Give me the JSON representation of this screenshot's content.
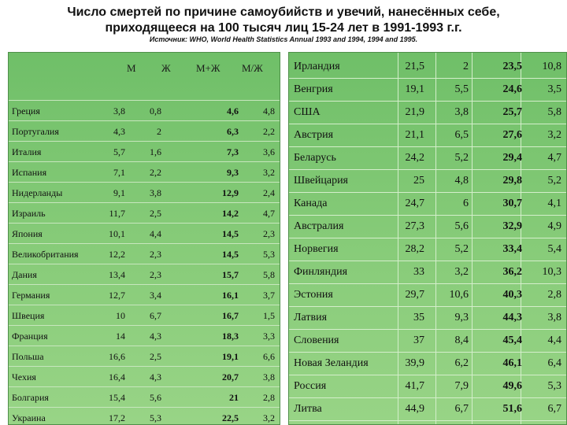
{
  "title_line1": "Число смертей по причине самоубийств и увечий, нанесённых себе,",
  "title_line2": "приходящееся на 100 тысяч лиц 15-24 лет в 1991-1993 г.г.",
  "source": "Источник: WHO, World Health Statistics Annual 1993 and 1994, 1994 and 1995.",
  "headers": {
    "m": "М",
    "f": "Ж",
    "mf": "М+Ж",
    "ratio": "М/Ж"
  },
  "left_rows": [
    {
      "name": "Греция",
      "m": "3,8",
      "f": "0,8",
      "mf": "4,6",
      "r": "4,8"
    },
    {
      "name": "Португалия",
      "m": "4,3",
      "f": "2",
      "mf": "6,3",
      "r": "2,2"
    },
    {
      "name": "Италия",
      "m": "5,7",
      "f": "1,6",
      "mf": "7,3",
      "r": "3,6"
    },
    {
      "name": "Испания",
      "m": "7,1",
      "f": "2,2",
      "mf": "9,3",
      "r": "3,2"
    },
    {
      "name": "Нидерланды",
      "m": "9,1",
      "f": "3,8",
      "mf": "12,9",
      "r": "2,4"
    },
    {
      "name": "Израиль",
      "m": "11,7",
      "f": "2,5",
      "mf": "14,2",
      "r": "4,7"
    },
    {
      "name": "Япония",
      "m": "10,1",
      "f": "4,4",
      "mf": "14,5",
      "r": "2,3"
    },
    {
      "name": "Великобритания",
      "m": "12,2",
      "f": "2,3",
      "mf": "14,5",
      "r": "5,3"
    },
    {
      "name": "Дания",
      "m": "13,4",
      "f": "2,3",
      "mf": "15,7",
      "r": "5,8"
    },
    {
      "name": "Германия",
      "m": "12,7",
      "f": "3,4",
      "mf": "16,1",
      "r": "3,7"
    },
    {
      "name": "Швеция",
      "m": "10",
      "f": "6,7",
      "mf": "16,7",
      "r": "1,5"
    },
    {
      "name": "Франция",
      "m": "14",
      "f": "4,3",
      "mf": "18,3",
      "r": "3,3"
    },
    {
      "name": "Польша",
      "m": "16,6",
      "f": "2,5",
      "mf": "19,1",
      "r": "6,6"
    },
    {
      "name": "Чехия",
      "m": "16,4",
      "f": "4,3",
      "mf": "20,7",
      "r": "3,8"
    },
    {
      "name": "Болгария",
      "m": "15,4",
      "f": "5,6",
      "mf": "21",
      "r": "2,8"
    },
    {
      "name": "Украина",
      "m": "17,2",
      "f": "5,3",
      "mf": "22,5",
      "r": "3,2"
    }
  ],
  "right_rows": [
    {
      "name": "Ирландия",
      "m": "21,5",
      "f": "2",
      "mf": "23,5",
      "r": "10,8"
    },
    {
      "name": "Венгрия",
      "m": "19,1",
      "f": "5,5",
      "mf": "24,6",
      "r": "3,5"
    },
    {
      "name": "США",
      "m": "21,9",
      "f": "3,8",
      "mf": "25,7",
      "r": "5,8"
    },
    {
      "name": "Австрия",
      "m": "21,1",
      "f": "6,5",
      "mf": "27,6",
      "r": "3,2"
    },
    {
      "name": "Беларусь",
      "m": "24,2",
      "f": "5,2",
      "mf": "29,4",
      "r": "4,7"
    },
    {
      "name": "Швейцария",
      "m": "25",
      "f": "4,8",
      "mf": "29,8",
      "r": "5,2"
    },
    {
      "name": "Канада",
      "m": "24,7",
      "f": "6",
      "mf": "30,7",
      "r": "4,1"
    },
    {
      "name": "Австралия",
      "m": "27,3",
      "f": "5,6",
      "mf": "32,9",
      "r": "4,9"
    },
    {
      "name": "Норвегия",
      "m": "28,2",
      "f": "5,2",
      "mf": "33,4",
      "r": "5,4"
    },
    {
      "name": "Финляндия",
      "m": "33",
      "f": "3,2",
      "mf": "36,2",
      "r": "10,3"
    },
    {
      "name": "Эстония",
      "m": "29,7",
      "f": "10,6",
      "mf": "40,3",
      "r": "2,8"
    },
    {
      "name": "Латвия",
      "m": "35",
      "f": "9,3",
      "mf": "44,3",
      "r": "3,8"
    },
    {
      "name": "Словения",
      "m": "37",
      "f": "8,4",
      "mf": "45,4",
      "r": "4,4"
    },
    {
      "name": "Новая Зеландия",
      "m": "39,9",
      "f": "6,2",
      "mf": "46,1",
      "r": "6,4"
    },
    {
      "name": "Россия",
      "m": "41,7",
      "f": "7,9",
      "mf": "49,6",
      "r": "5,3"
    },
    {
      "name": "Литва",
      "m": "44,9",
      "f": "6,7",
      "mf": "51,6",
      "r": "6,7"
    }
  ]
}
